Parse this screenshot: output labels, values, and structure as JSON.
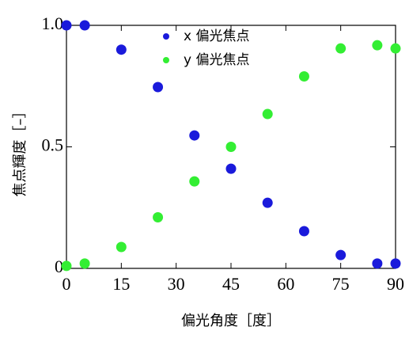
{
  "chart_data": {
    "type": "scatter",
    "xlabel": "偏光角度［度］",
    "ylabel": "焦点輝度［–］",
    "xlim": [
      0,
      90
    ],
    "xticks": [
      0,
      15,
      30,
      45,
      60,
      75,
      90
    ],
    "ylim": [
      0,
      1
    ],
    "yticks": [
      0,
      0.5,
      {
        "value": 1,
        "label": "1.0"
      }
    ],
    "legend": "top",
    "series": [
      {
        "name": "x 偏光焦点",
        "color": "#1a1adb",
        "x": [
          0,
          5,
          15,
          25,
          35,
          45,
          55,
          65,
          75,
          85,
          90
        ],
        "values": [
          1.0,
          1.0,
          0.9,
          0.746,
          0.547,
          0.41,
          0.27,
          0.153,
          0.055,
          0.02,
          0.02
        ]
      },
      {
        "name": "y 偏光焦点",
        "color": "#33ee33",
        "x": [
          0,
          5,
          15,
          25,
          35,
          45,
          55,
          65,
          75,
          85,
          90
        ],
        "values": [
          0.01,
          0.02,
          0.088,
          0.21,
          0.358,
          0.5,
          0.635,
          0.79,
          0.905,
          0.918,
          0.905
        ]
      }
    ]
  }
}
